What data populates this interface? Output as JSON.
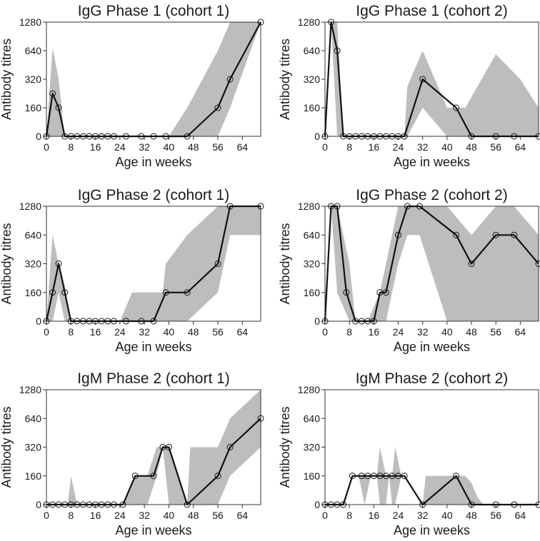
{
  "chart_data": [
    {
      "type": "line",
      "title": "IgG Phase 1 (cohort 1)",
      "xlabel": "Age in weeks",
      "ylabel": "Antibody titres",
      "x_ticks": [
        0,
        8,
        16,
        24,
        32,
        40,
        48,
        56,
        64
      ],
      "y_ticks": [
        0,
        160,
        320,
        640,
        1280
      ],
      "xlim": [
        0,
        70
      ],
      "series": [
        {
          "x": [
            0,
            2,
            4,
            6,
            8,
            10,
            12,
            14,
            16,
            18,
            20,
            22,
            26,
            31,
            35,
            39,
            46,
            56,
            60,
            70
          ],
          "y": [
            0,
            240,
            160,
            0,
            0,
            0,
            0,
            0,
            0,
            0,
            0,
            0,
            0,
            0,
            0,
            0,
            0,
            160,
            320,
            1280
          ]
        }
      ],
      "band": {
        "x": [
          0,
          2,
          4,
          6,
          8,
          12,
          20,
          30,
          40,
          46,
          56,
          60,
          70
        ],
        "lower": [
          0,
          0,
          0,
          0,
          0,
          0,
          0,
          0,
          0,
          0,
          0,
          160,
          1280
        ],
        "upper": [
          0,
          700,
          320,
          0,
          0,
          0,
          0,
          0,
          0,
          160,
          640,
          1280,
          1280
        ]
      }
    },
    {
      "type": "line",
      "title": "IgG Phase 1 (cohort 2)",
      "xlabel": "Age in weeks",
      "ylabel": "Antibody titres",
      "x_ticks": [
        0,
        8,
        16,
        24,
        32,
        40,
        48,
        56,
        64
      ],
      "y_ticks": [
        0,
        160,
        320,
        640,
        1280
      ],
      "xlim": [
        0,
        70
      ],
      "series": [
        {
          "x": [
            0,
            2,
            4,
            6,
            8,
            10,
            12,
            14,
            16,
            18,
            20,
            22,
            24,
            26,
            32,
            43,
            48,
            56,
            62,
            70
          ],
          "y": [
            0,
            1280,
            640,
            0,
            0,
            0,
            0,
            0,
            0,
            0,
            0,
            0,
            0,
            0,
            320,
            160,
            0,
            0,
            0,
            0
          ]
        }
      ],
      "band": {
        "x": [
          0,
          2,
          4,
          6,
          8,
          24,
          26,
          27,
          32,
          40,
          46,
          56,
          64,
          70
        ],
        "lower": [
          0,
          1280,
          0,
          0,
          0,
          0,
          0,
          0,
          160,
          0,
          0,
          0,
          0,
          0
        ],
        "upper": [
          0,
          1280,
          1280,
          0,
          0,
          0,
          0,
          280,
          640,
          160,
          160,
          600,
          320,
          160
        ]
      }
    },
    {
      "type": "line",
      "title": "IgG Phase 2 (cohort 1)",
      "xlabel": "Age in weeks",
      "ylabel": "Antibody titres",
      "x_ticks": [
        0,
        8,
        16,
        24,
        32,
        40,
        48,
        56,
        64
      ],
      "y_ticks": [
        0,
        160,
        320,
        640,
        1280
      ],
      "xlim": [
        0,
        70
      ],
      "series": [
        {
          "x": [
            0,
            2,
            4,
            6,
            8,
            10,
            12,
            14,
            16,
            18,
            20,
            22,
            26,
            31,
            35,
            39,
            46,
            56,
            60,
            70
          ],
          "y": [
            0,
            160,
            320,
            160,
            0,
            0,
            0,
            0,
            0,
            0,
            0,
            0,
            0,
            0,
            0,
            160,
            160,
            320,
            1280,
            1280
          ]
        }
      ],
      "band": {
        "x": [
          0,
          2,
          4,
          6,
          8,
          12,
          24,
          28,
          38,
          39,
          46,
          56,
          60,
          70
        ],
        "lower": [
          0,
          0,
          160,
          0,
          0,
          0,
          0,
          0,
          0,
          0,
          0,
          160,
          640,
          640
        ],
        "upper": [
          0,
          640,
          320,
          200,
          0,
          0,
          0,
          160,
          160,
          320,
          640,
          1280,
          1280,
          1280
        ]
      }
    },
    {
      "type": "line",
      "title": "IgG Phase 2 (cohort 2)",
      "xlabel": "Age in weeks",
      "ylabel": "Antibody titres",
      "x_ticks": [
        0,
        8,
        16,
        24,
        32,
        40,
        48,
        56,
        64
      ],
      "y_ticks": [
        0,
        160,
        320,
        640,
        1280
      ],
      "xlim": [
        0,
        70
      ],
      "series": [
        {
          "x": [
            0,
            2,
            4,
            7,
            10,
            12,
            14,
            16,
            18,
            20,
            24,
            27,
            31,
            43,
            48,
            56,
            62,
            70
          ],
          "y": [
            0,
            1280,
            1280,
            160,
            0,
            0,
            0,
            0,
            160,
            160,
            640,
            1280,
            1280,
            640,
            320,
            640,
            640,
            320
          ]
        }
      ],
      "band": {
        "x": [
          0,
          2,
          4,
          8,
          10,
          14,
          18,
          20,
          24,
          27,
          31,
          40,
          48,
          56,
          62,
          70
        ],
        "lower": [
          0,
          1280,
          160,
          0,
          0,
          0,
          0,
          0,
          320,
          640,
          640,
          0,
          0,
          0,
          0,
          0
        ],
        "upper": [
          0,
          1280,
          1280,
          320,
          0,
          0,
          160,
          320,
          1280,
          1280,
          1280,
          1280,
          640,
          1280,
          1280,
          640
        ]
      }
    },
    {
      "type": "line",
      "title": "IgM Phase 2 (cohort 1)",
      "xlabel": "Age in weeks",
      "ylabel": "Antibody titres",
      "x_ticks": [
        0,
        8,
        16,
        24,
        32,
        40,
        48,
        56,
        64
      ],
      "y_ticks": [
        0,
        160,
        320,
        640,
        1280
      ],
      "xlim": [
        0,
        70
      ],
      "series": [
        {
          "x": [
            0,
            2,
            4,
            6,
            8,
            10,
            12,
            14,
            16,
            18,
            20,
            22,
            25,
            29,
            35,
            38,
            40,
            46,
            56,
            60,
            70
          ],
          "y": [
            0,
            0,
            0,
            0,
            0,
            0,
            0,
            0,
            0,
            0,
            0,
            0,
            0,
            160,
            160,
            320,
            320,
            0,
            160,
            320,
            640
          ]
        }
      ],
      "band": {
        "x": [
          0,
          5,
          7,
          8,
          10,
          25,
          29,
          33,
          36,
          38,
          40,
          46,
          47,
          56,
          60,
          70
        ],
        "lower": [
          0,
          0,
          0,
          0,
          0,
          0,
          0,
          0,
          160,
          320,
          0,
          0,
          0,
          0,
          160,
          320
        ],
        "upper": [
          0,
          0,
          0,
          160,
          0,
          0,
          160,
          160,
          320,
          320,
          320,
          0,
          320,
          320,
          640,
          1280
        ]
      }
    },
    {
      "type": "line",
      "title": "IgM Phase 2 (cohort 2)",
      "xlabel": "Age in weeks",
      "ylabel": "Antibody titres",
      "x_ticks": [
        0,
        8,
        16,
        24,
        32,
        40,
        48,
        56,
        64
      ],
      "y_ticks": [
        0,
        160,
        320,
        640,
        1280
      ],
      "xlim": [
        0,
        70
      ],
      "series": [
        {
          "x": [
            0,
            2,
            4,
            6,
            9,
            12,
            14,
            16,
            18,
            20,
            22,
            24,
            26,
            32,
            43,
            48,
            56,
            62,
            70
          ],
          "y": [
            0,
            0,
            0,
            0,
            160,
            160,
            160,
            160,
            160,
            160,
            160,
            160,
            160,
            0,
            160,
            0,
            0,
            0,
            0
          ]
        }
      ],
      "band": {
        "x": [
          0,
          8,
          9,
          11,
          13,
          15,
          17,
          18,
          20,
          21,
          22,
          23,
          25,
          27,
          31,
          32,
          33,
          46,
          48,
          50,
          52
        ],
        "lower": [
          0,
          0,
          160,
          160,
          0,
          160,
          160,
          0,
          0,
          160,
          0,
          0,
          160,
          160,
          0,
          0,
          0,
          0,
          0,
          0,
          0
        ],
        "upper": [
          0,
          0,
          160,
          160,
          160,
          160,
          160,
          320,
          160,
          160,
          160,
          320,
          160,
          160,
          0,
          0,
          160,
          160,
          120,
          40,
          0
        ]
      }
    }
  ]
}
